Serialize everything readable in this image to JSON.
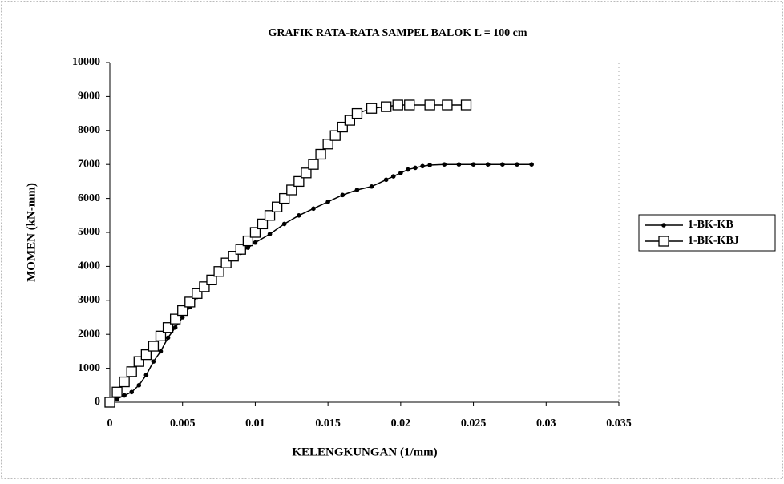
{
  "chart_data": {
    "type": "line",
    "title": "GRAFIK RATA-RATA SAMPEL BALOK L = 100 cm",
    "x_label": "KELENGKUNGAN (1/mm)",
    "y_label": "MOMEN (kN-mm)",
    "xlim": [
      0,
      0.035
    ],
    "xticks": [
      0,
      0.005,
      0.01,
      0.015,
      0.02,
      0.025,
      0.03,
      0.035
    ],
    "ylim": [
      0,
      10000
    ],
    "yticks": [
      0,
      1000,
      2000,
      3000,
      4000,
      5000,
      6000,
      7000,
      8000,
      9000,
      10000
    ],
    "grid": false,
    "legend": "right",
    "series": [
      {
        "name": "1-BK-KB",
        "color": "#000000",
        "marker": "circle",
        "x": [
          0,
          0.0005,
          0.001,
          0.0015,
          0.002,
          0.0025,
          0.003,
          0.0035,
          0.004,
          0.0045,
          0.005,
          0.0055,
          0.006,
          0.0065,
          0.007,
          0.0075,
          0.008,
          0.0085,
          0.009,
          0.0095,
          0.01,
          0.011,
          0.012,
          0.013,
          0.014,
          0.015,
          0.016,
          0.017,
          0.018,
          0.019,
          0.0195,
          0.02,
          0.0205,
          0.021,
          0.0215,
          0.022,
          0.023,
          0.024,
          0.025,
          0.026,
          0.027,
          0.028,
          0.029
        ],
        "values": [
          0,
          100,
          200,
          300,
          500,
          800,
          1200,
          1500,
          1900,
          2200,
          2500,
          2800,
          3100,
          3400,
          3600,
          3900,
          4100,
          4300,
          4400,
          4550,
          4700,
          4950,
          5250,
          5500,
          5700,
          5900,
          6100,
          6250,
          6350,
          6550,
          6650,
          6750,
          6850,
          6900,
          6950,
          6980,
          7000,
          7000,
          7000,
          7000,
          7000,
          7000,
          7000
        ]
      },
      {
        "name": "1-BK-KBJ",
        "color": "#000000",
        "marker": "square",
        "x": [
          0,
          0.0005,
          0.001,
          0.0015,
          0.002,
          0.0025,
          0.003,
          0.0035,
          0.004,
          0.0045,
          0.005,
          0.0055,
          0.006,
          0.0065,
          0.007,
          0.0075,
          0.008,
          0.0085,
          0.009,
          0.0095,
          0.01,
          0.0105,
          0.011,
          0.0115,
          0.012,
          0.0125,
          0.013,
          0.0135,
          0.014,
          0.0145,
          0.015,
          0.0155,
          0.016,
          0.0165,
          0.017,
          0.018,
          0.019,
          0.0198,
          0.0206,
          0.022,
          0.0232,
          0.0245
        ],
        "values": [
          0,
          300,
          600,
          900,
          1200,
          1400,
          1650,
          1950,
          2200,
          2450,
          2700,
          2950,
          3200,
          3400,
          3600,
          3850,
          4100,
          4300,
          4500,
          4750,
          5000,
          5250,
          5500,
          5750,
          6000,
          6250,
          6500,
          6750,
          7000,
          7300,
          7600,
          7850,
          8100,
          8300,
          8500,
          8650,
          8700,
          8750,
          8750,
          8750,
          8750,
          8750
        ]
      }
    ]
  }
}
